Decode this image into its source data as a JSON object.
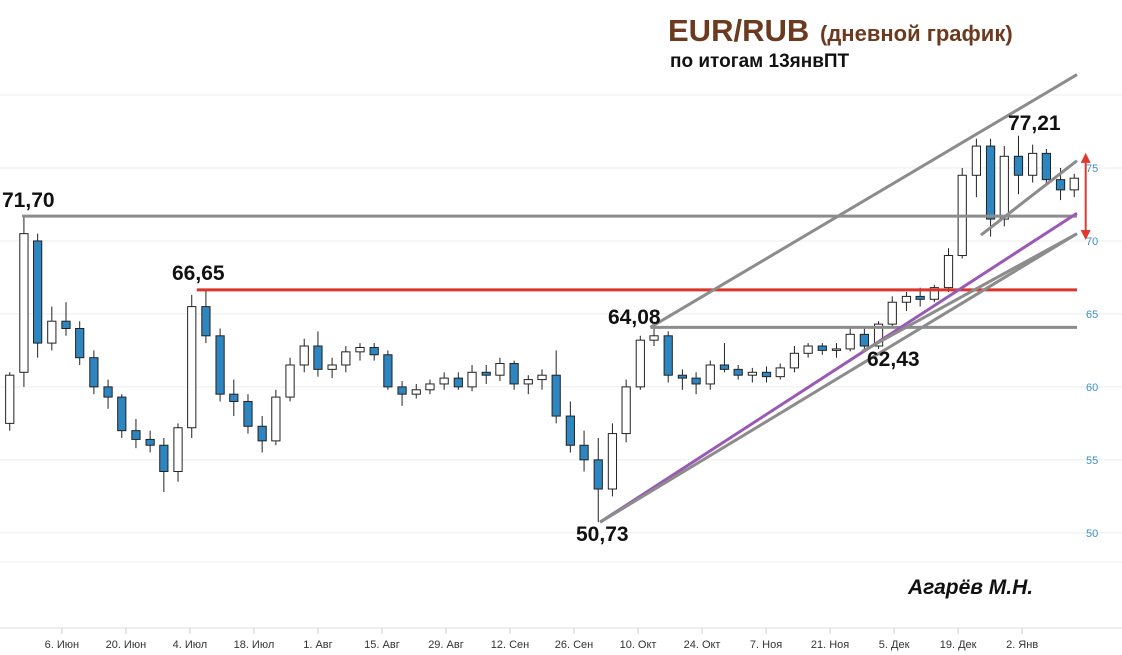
{
  "chart_data": {
    "type": "candlestick",
    "title": "EUR/RUB",
    "title_note": "(дневной график)",
    "subtitle": "по итогам 13янвПТ",
    "author": "Агарёв М.Н.",
    "xlim": [
      -12,
      222
    ],
    "ylim": [
      48,
      80
    ],
    "xticks": [
      {
        "value": 0,
        "label": "6. Июн"
      },
      {
        "value": 14,
        "label": "20. Июн"
      },
      {
        "value": 28,
        "label": "4. Июл"
      },
      {
        "value": 42,
        "label": "18. Июл"
      },
      {
        "value": 56,
        "label": "1. Авг"
      },
      {
        "value": 70,
        "label": "15. Авг"
      },
      {
        "value": 84,
        "label": "29. Авг"
      },
      {
        "value": 98,
        "label": "12. Сен"
      },
      {
        "value": 112,
        "label": "26. Сен"
      },
      {
        "value": 126,
        "label": "10. Окт"
      },
      {
        "value": 140,
        "label": "24. Окт"
      },
      {
        "value": 154,
        "label": "7. Ноя"
      },
      {
        "value": 168,
        "label": "21. Ноя"
      },
      {
        "value": 182,
        "label": "5. Дек"
      },
      {
        "value": 196,
        "label": "19. Дек"
      },
      {
        "value": 210,
        "label": "2. Янв"
      }
    ],
    "yticks": [
      50,
      55,
      60,
      65,
      70,
      75
    ],
    "grid": true,
    "up_color": "#ffffff",
    "down_color": "#2e86c1",
    "x": [
      -11.4,
      -8.3,
      -5.3,
      -2.2,
      0.9,
      3.9,
      7.0,
      10.1,
      13.1,
      16.2,
      19.3,
      22.3,
      25.4,
      28.4,
      31.5,
      34.6,
      37.6,
      40.7,
      43.8,
      46.8,
      49.9,
      53.0,
      56.0,
      59.1,
      62.1,
      65.2,
      68.3,
      71.3,
      74.4,
      77.5,
      80.5,
      83.6,
      86.7,
      89.7,
      92.8,
      95.8,
      98.9,
      102.0,
      105.0,
      108.1,
      111.2,
      114.2,
      117.3,
      120.4,
      123.4,
      126.5,
      129.5,
      132.6,
      135.7,
      138.7,
      141.8,
      144.9,
      147.9,
      151.0,
      154.1,
      157.1,
      160.2,
      163.2,
      166.3,
      169.4,
      172.4,
      175.5,
      178.6,
      181.6,
      184.7,
      187.7,
      190.8,
      193.9,
      196.9,
      200.0,
      203.1,
      206.1,
      209.2,
      212.3,
      215.3,
      218.4,
      221.4
    ],
    "open": [
      57.5,
      61,
      70,
      63,
      64.5,
      64,
      62,
      60,
      59.3,
      57,
      56.4,
      56,
      54.2,
      57.2,
      65.5,
      63.5,
      59.5,
      59,
      57.3,
      56.3,
      59.3,
      61.5,
      62.8,
      61.2,
      61.5,
      62.4,
      62.7,
      62.2,
      60,
      59.5,
      59.8,
      60.2,
      60.6,
      60,
      61,
      60.8,
      61.6,
      60.2,
      60.5,
      60.8,
      58,
      56,
      55,
      53,
      56.8,
      60,
      63.2,
      63.5,
      60.8,
      60.6,
      60.2,
      61.5,
      61.2,
      60.8,
      61,
      60.7,
      61.3,
      62.3,
      62.8,
      62.5,
      62.6,
      63.6,
      62.8,
      64.3,
      65.8,
      66.2,
      66,
      66.8,
      69,
      74.5,
      76.5,
      71.5,
      75.8,
      74.5,
      76,
      74.2,
      73.5
    ],
    "high": [
      61,
      71.7,
      70.5,
      65.5,
      65.8,
      64.5,
      62.5,
      60.5,
      59.5,
      57.8,
      57,
      56.5,
      57.5,
      66.3,
      66.65,
      64,
      60.5,
      59.5,
      58,
      59.8,
      62,
      63.3,
      63.8,
      62,
      62.8,
      63,
      63,
      62.5,
      60.4,
      60.2,
      60.5,
      61,
      61,
      61.5,
      61.5,
      62,
      61.8,
      60.8,
      61.2,
      62.5,
      59,
      57,
      56.5,
      57.5,
      60.5,
      63.5,
      64.08,
      63.8,
      61.2,
      61,
      61.8,
      63,
      61.5,
      61.3,
      61.4,
      61.6,
      62.8,
      63,
      63,
      63,
      64,
      64,
      64.5,
      66.2,
      66.5,
      66.8,
      67,
      69.5,
      75,
      77,
      77,
      76.5,
      77.21,
      76.6,
      76.3,
      75,
      74.6
    ],
    "low": [
      57,
      60,
      62,
      62.5,
      63.5,
      61.5,
      59.5,
      58.5,
      56.5,
      55.8,
      55.5,
      52.8,
      53.5,
      56.5,
      63,
      59,
      58,
      56.8,
      55.5,
      56,
      59,
      61,
      60.7,
      60.6,
      61,
      61.8,
      61.8,
      59.8,
      58.7,
      59.2,
      59.5,
      59.8,
      59.8,
      59.7,
      60.2,
      60.4,
      59.8,
      59.5,
      59.8,
      57.5,
      55.5,
      54.2,
      50.73,
      52.5,
      56.2,
      59.8,
      62.8,
      60.3,
      59.8,
      59.5,
      59.8,
      61,
      60.5,
      60.3,
      60.3,
      60.5,
      61,
      62,
      62.2,
      62,
      62.43,
      62.43,
      62.6,
      64,
      65.2,
      65.5,
      65.8,
      66.5,
      68.8,
      73,
      70.3,
      71,
      73.2,
      74,
      73.8,
      72.8,
      73
    ],
    "close": [
      60.8,
      70.5,
      63,
      64.5,
      64,
      62,
      60,
      59.3,
      57,
      56.4,
      56,
      54.2,
      57.2,
      65.5,
      63.5,
      59.5,
      59,
      57.3,
      56.3,
      59.3,
      61.5,
      62.8,
      61.2,
      61.5,
      62.4,
      62.7,
      62.2,
      60,
      59.5,
      59.8,
      60.2,
      60.6,
      60,
      61,
      60.8,
      61.6,
      60.2,
      60.5,
      60.8,
      58,
      56,
      55,
      53,
      56.8,
      60,
      63.2,
      63.5,
      60.8,
      60.6,
      60.2,
      61.5,
      61.2,
      60.8,
      61,
      60.7,
      61.3,
      62.3,
      62.8,
      62.5,
      62.6,
      63.6,
      62.8,
      64.3,
      65.8,
      66.2,
      66,
      66.8,
      69,
      74.5,
      76.5,
      71.5,
      75.8,
      74.5,
      76,
      74.2,
      73.5,
      74.3
    ],
    "lines": [
      {
        "color": "#8c8c8c",
        "x": [
          -8.7,
          222
        ],
        "y": [
          71.7,
          71.7
        ]
      },
      {
        "color": "#d9352a",
        "x": [
          29.5,
          222
        ],
        "y": [
          66.65,
          66.65
        ]
      },
      {
        "color": "#8c8c8c",
        "x": [
          128.7,
          222
        ],
        "y": [
          64.08,
          64.08
        ]
      },
      {
        "color": "#8c8c8c",
        "x": [
          128.7,
          222
        ],
        "y": [
          64.08,
          81.4
        ]
      },
      {
        "color": "#9b59b6",
        "x": [
          117.7,
          222
        ],
        "y": [
          50.73,
          71.9
        ]
      },
      {
        "color": "#8c8c8c",
        "x": [
          117.7,
          222
        ],
        "y": [
          50.73,
          70.5
        ]
      },
      {
        "color": "#8c8c8c",
        "x": [
          175,
          222
        ],
        "y": [
          62.43,
          70.5
        ]
      },
      {
        "color": "#8c8c8c",
        "x": [
          201,
          222
        ],
        "y": [
          70.4,
          75.5
        ]
      },
      {
        "color": "#e03a2f",
        "x": [
          223.9,
          223.9
        ],
        "y": [
          75.9,
          70.2
        ],
        "arrow": true
      }
    ],
    "annotations": [
      "71,70",
      "66,65",
      "64,08",
      "50,73",
      "62,43",
      "77,21"
    ]
  }
}
